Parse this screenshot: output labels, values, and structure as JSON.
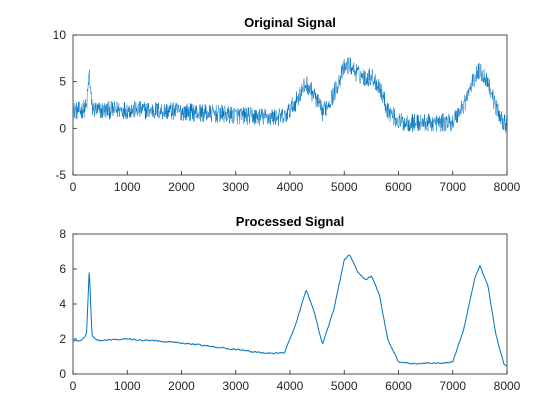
{
  "chart_data": [
    {
      "type": "line",
      "title": "Original Signal",
      "xlabel": "",
      "ylabel": "",
      "xlim": [
        0,
        8000
      ],
      "ylim": [
        -5,
        10
      ],
      "xticks": [
        0,
        1000,
        2000,
        3000,
        4000,
        5000,
        6000,
        7000,
        8000
      ],
      "yticks": [
        -5,
        0,
        5,
        10
      ],
      "grid": false,
      "color": "#0072BD",
      "noise_amplitude": 0.9,
      "series": [
        {
          "x": [
            0,
            150,
            250,
            300,
            350,
            450,
            1000,
            2000,
            3000,
            3500,
            3900,
            4100,
            4300,
            4450,
            4600,
            4800,
            5000,
            5100,
            5250,
            5400,
            5500,
            5650,
            5800,
            6000,
            6200,
            6500,
            6800,
            7000,
            7200,
            7400,
            7500,
            7650,
            7800,
            7950,
            8000
          ],
          "y": [
            1.9,
            1.9,
            2.3,
            6.0,
            2.2,
            1.9,
            2.0,
            1.8,
            1.4,
            1.2,
            1.2,
            2.8,
            4.8,
            3.5,
            1.7,
            3.6,
            6.5,
            6.8,
            5.8,
            5.4,
            5.6,
            4.5,
            2.0,
            0.7,
            0.6,
            0.6,
            0.6,
            0.7,
            2.5,
            5.4,
            6.2,
            5.0,
            2.2,
            0.5,
            0.5
          ]
        }
      ]
    },
    {
      "type": "line",
      "title": "Processed Signal",
      "xlabel": "",
      "ylabel": "",
      "xlim": [
        0,
        8000
      ],
      "ylim": [
        0,
        8
      ],
      "xticks": [
        0,
        1000,
        2000,
        3000,
        4000,
        5000,
        6000,
        7000,
        8000
      ],
      "yticks": [
        0,
        2,
        4,
        6,
        8
      ],
      "grid": false,
      "color": "#0072BD",
      "noise_amplitude": 0.08,
      "series": [
        {
          "x": [
            0,
            150,
            250,
            300,
            350,
            450,
            1000,
            2000,
            3000,
            3500,
            3900,
            4100,
            4300,
            4450,
            4600,
            4800,
            5000,
            5100,
            5250,
            5400,
            5500,
            5650,
            5800,
            6000,
            6200,
            6500,
            6800,
            7000,
            7200,
            7400,
            7500,
            7650,
            7800,
            7950,
            8000
          ],
          "y": [
            1.9,
            1.9,
            2.3,
            6.0,
            2.2,
            1.9,
            2.0,
            1.8,
            1.4,
            1.2,
            1.2,
            2.8,
            4.8,
            3.5,
            1.7,
            3.6,
            6.5,
            6.8,
            5.8,
            5.4,
            5.6,
            4.5,
            2.0,
            0.7,
            0.6,
            0.6,
            0.6,
            0.7,
            2.5,
            5.4,
            6.2,
            5.0,
            2.2,
            0.5,
            0.5
          ]
        }
      ]
    }
  ]
}
